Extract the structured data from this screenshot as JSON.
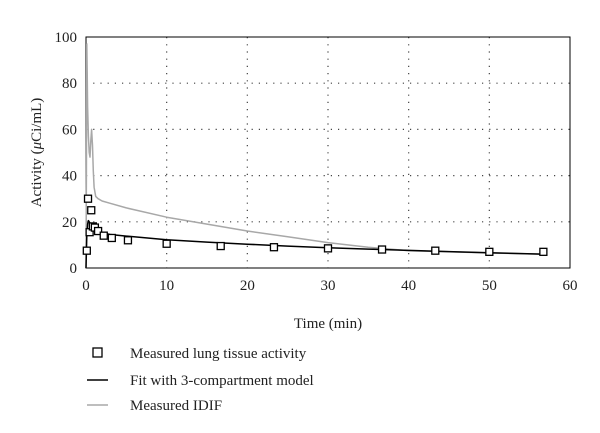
{
  "chart_data": {
    "type": "line",
    "xlabel": "Time (min)",
    "ylabel_prefix": "Activity (",
    "ylabel_mu": "μ",
    "ylabel_suffix": "Ci/mL)",
    "xlim": [
      0,
      60
    ],
    "ylim": [
      0,
      100
    ],
    "xticks": [
      0,
      10,
      20,
      30,
      40,
      50,
      60
    ],
    "yticks": [
      0,
      20,
      40,
      60,
      80,
      100
    ],
    "grid": true,
    "legend_position": "bottom-left",
    "series": [
      {
        "name": "Measured lung tissue activity",
        "kind": "scatter",
        "marker": "open-square",
        "color": "#000000",
        "x": [
          0.1,
          0.25,
          0.45,
          0.65,
          0.85,
          1.1,
          1.5,
          2.2,
          3.2,
          5.2,
          10.0,
          16.7,
          23.3,
          30.0,
          36.7,
          43.3,
          50.0,
          56.7
        ],
        "y": [
          7.5,
          30.0,
          15.5,
          25.0,
          18.0,
          17.5,
          16.0,
          14.0,
          13.0,
          12.0,
          10.5,
          9.5,
          9.0,
          8.5,
          8.0,
          7.5,
          7.0,
          7.0
        ]
      },
      {
        "name": "Fit with 3-compartment model",
        "kind": "line",
        "color": "#000000",
        "x": [
          0,
          0.1,
          0.2,
          0.3,
          0.5,
          0.8,
          1,
          1.5,
          2,
          3,
          5,
          10,
          15,
          20,
          25,
          30,
          35,
          40,
          45,
          50,
          56.5
        ],
        "y": [
          0,
          14,
          19,
          20.5,
          19.5,
          18,
          17,
          16,
          15.2,
          14.5,
          13.8,
          12.2,
          11.2,
          10.3,
          9.5,
          8.8,
          8.2,
          7.6,
          7.1,
          6.6,
          6.0
        ]
      },
      {
        "name": "Measured IDIF",
        "kind": "line",
        "color": "#a8a8a8",
        "x": [
          0,
          0.05,
          0.1,
          0.15,
          0.2,
          0.3,
          0.4,
          0.5,
          0.6,
          0.7,
          0.8,
          0.9,
          1.0,
          1.2,
          1.5,
          2,
          3,
          5,
          10,
          15,
          20,
          25,
          30,
          35,
          40,
          45,
          50,
          56.5
        ],
        "y": [
          0,
          40,
          97,
          85,
          70,
          57,
          50,
          48,
          55,
          60,
          53,
          42,
          35,
          31,
          30,
          29,
          28,
          26,
          22,
          19,
          16,
          13.5,
          11,
          9,
          7.5,
          7,
          6.5,
          6
        ]
      }
    ]
  }
}
